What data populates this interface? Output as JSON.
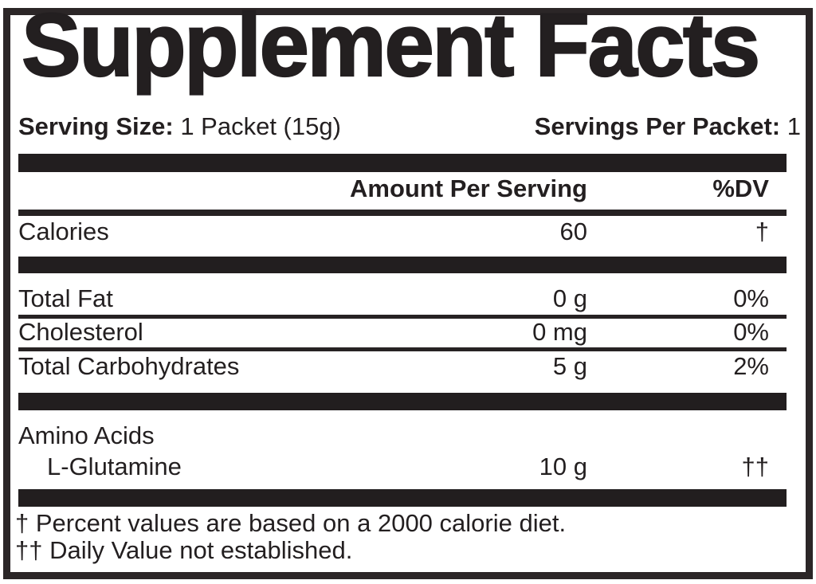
{
  "title": "Supplement Facts",
  "serving": {
    "size_label": "Serving Size:",
    "size_value": "1 Packet (15g)",
    "per_label": "Servings Per Packet:",
    "per_value": "1"
  },
  "header": {
    "amount": "Amount Per Serving",
    "dv": "%DV"
  },
  "rows": [
    {
      "name": "Calories",
      "amount": "60",
      "dv": "†"
    },
    {
      "name": "Total Fat",
      "amount": "0 g",
      "dv": "0%"
    },
    {
      "name": "Cholesterol",
      "amount": "0 mg",
      "dv": "0%"
    },
    {
      "name": "Total Carbohydrates",
      "amount": "5 g",
      "dv": "2%"
    },
    {
      "name": "Amino Acids",
      "amount": "",
      "dv": ""
    },
    {
      "name": "L-Glutamine",
      "amount": "10 g",
      "dv": "††"
    }
  ],
  "footnotes": {
    "percent": "† Percent values are based on a 2000 calorie diet.",
    "daily": "†† Daily Value not established."
  },
  "colors": {
    "ink": "#231f20",
    "bar": "#221e1f",
    "border": "#2b2627",
    "background": "#ffffff"
  }
}
